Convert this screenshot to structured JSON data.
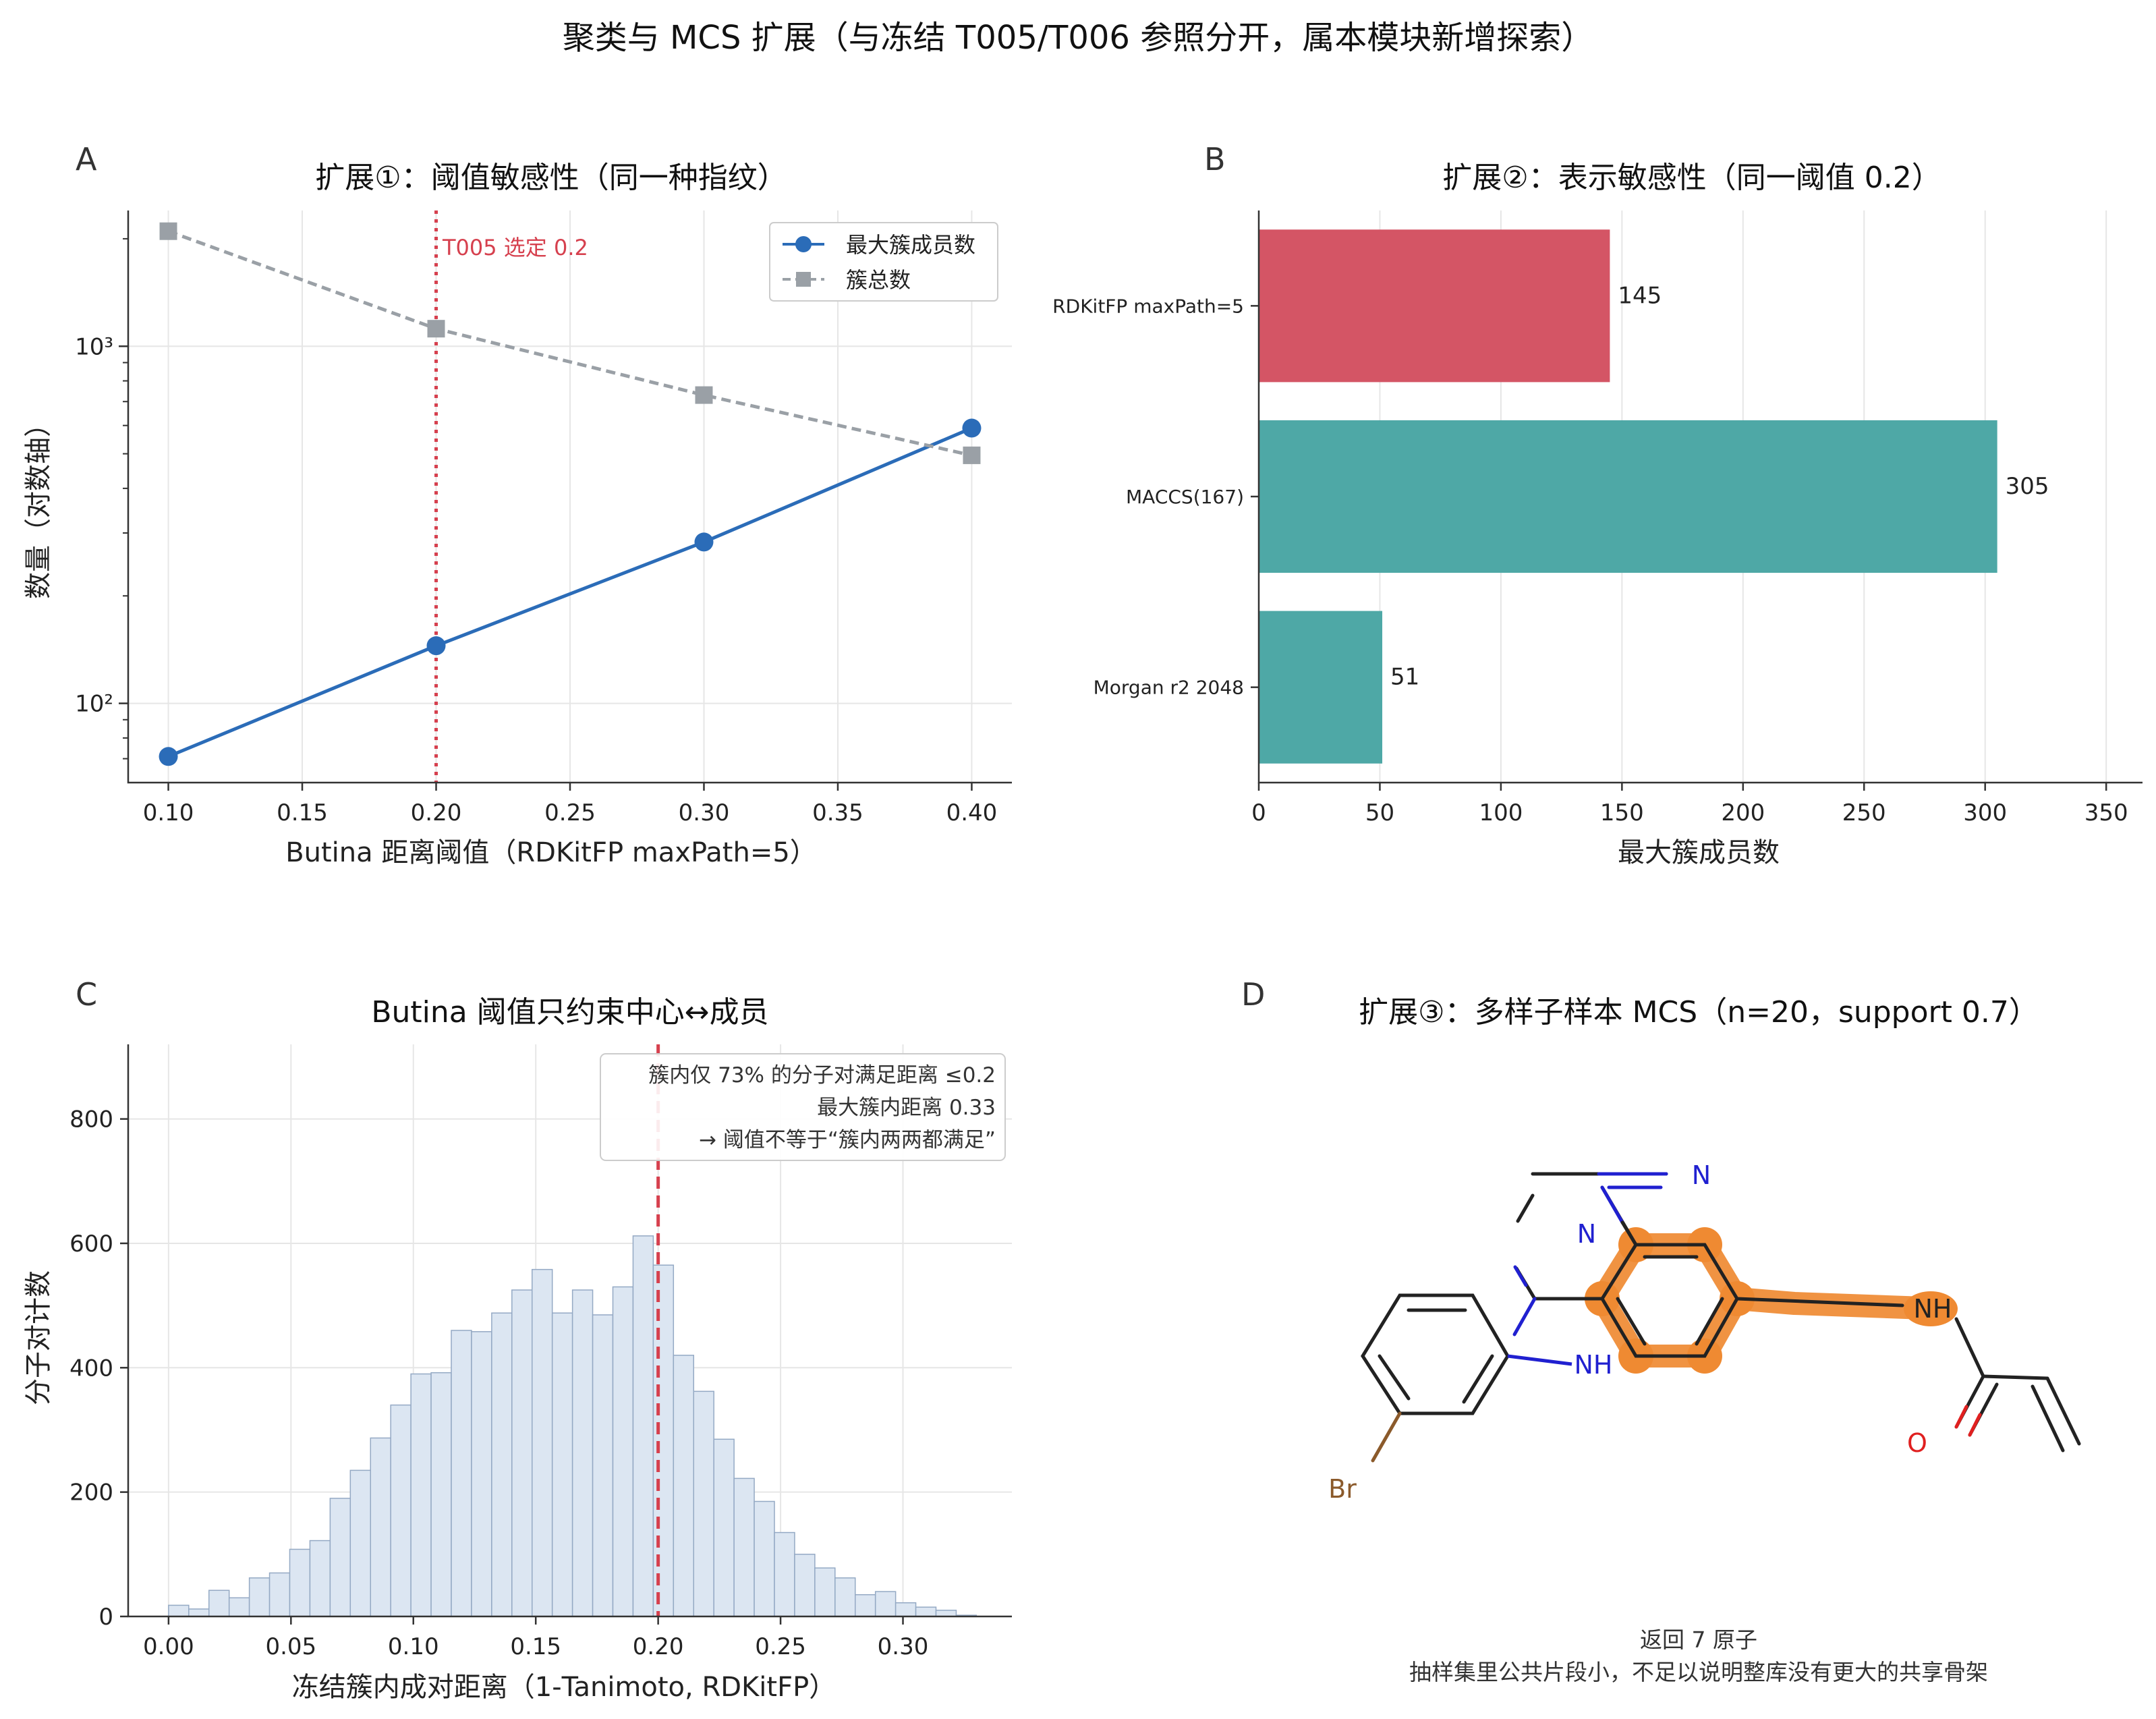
{
  "figure_title": "聚类与 MCS 扩展（与冻结 T005/T006 参照分开，属本模块新增探索）",
  "chart_data": [
    {
      "panel": "A",
      "type": "line",
      "title": "扩展①：阈值敏感性（同一种指纹）",
      "xlabel": "Butina 距离阈值（RDKitFP maxPath=5）",
      "ylabel": "数量（对数轴）",
      "yscale": "log",
      "xlim": [
        0.085,
        0.415
      ],
      "ylim": [
        60,
        2400
      ],
      "xticks": [
        "0.10",
        "0.15",
        "0.20",
        "0.25",
        "0.30",
        "0.35",
        "0.40"
      ],
      "xtick_values": [
        0.1,
        0.15,
        0.2,
        0.25,
        0.3,
        0.35,
        0.4
      ],
      "ytick_labels": [
        "10²",
        "10³"
      ],
      "ytick_values": [
        100,
        1000
      ],
      "x": [
        0.1,
        0.2,
        0.3,
        0.4
      ],
      "series": [
        {
          "name": "最大簇成员数",
          "values": [
            71,
            145,
            283,
            590
          ],
          "color": "#2b6cb8",
          "style": "solid",
          "marker": "circle"
        },
        {
          "name": "簇总数",
          "values": [
            2100,
            1120,
            730,
            495
          ],
          "color": "#9aa0a6",
          "style": "dashed",
          "marker": "square"
        }
      ],
      "vline": {
        "x": 0.2,
        "label": "T005 选定 0.2",
        "color": "#d6404e"
      },
      "grid": true,
      "legend": "top-right"
    },
    {
      "panel": "B",
      "type": "bar",
      "orientation": "horizontal",
      "title": "扩展②：表示敏感性（同一阈值 0.2）",
      "xlabel": "最大簇成员数",
      "categories": [
        "RDKitFP maxPath=5",
        "MACCS(167)",
        "Morgan r2 2048"
      ],
      "values": [
        145,
        305,
        51
      ],
      "value_labels": [
        "145",
        "305",
        "51"
      ],
      "colors": [
        "#d45565",
        "#4ea8a6",
        "#4ea8a6"
      ],
      "xlim": [
        0,
        365
      ],
      "xticks": [
        "0",
        "50",
        "100",
        "150",
        "200",
        "250",
        "300",
        "350"
      ],
      "xtick_values": [
        0,
        50,
        100,
        150,
        200,
        250,
        300,
        350
      ],
      "grid": true
    },
    {
      "panel": "C",
      "type": "bar",
      "subtype": "histogram",
      "title": "Butina 阈值只约束中心↔成员",
      "xlabel": "冻结簇内成对距离（1-Tanimoto, RDKitFP）",
      "ylabel": "分子对计数",
      "xlim": [
        -0.0165,
        0.3445
      ],
      "ylim": [
        0,
        920
      ],
      "xticks": [
        "0.00",
        "0.05",
        "0.10",
        "0.15",
        "0.20",
        "0.25",
        "0.30"
      ],
      "xtick_values": [
        0.0,
        0.05,
        0.1,
        0.15,
        0.2,
        0.25,
        0.3
      ],
      "yticks": [
        "0",
        "200",
        "400",
        "600",
        "800"
      ],
      "ytick_values": [
        0,
        200,
        400,
        600,
        800
      ],
      "bin_width": 0.00825,
      "bin_start": 0.0,
      "values": [
        18,
        12,
        42,
        30,
        62,
        70,
        108,
        122,
        190,
        235,
        287,
        340,
        390,
        392,
        460,
        458,
        488,
        525,
        558,
        488,
        525,
        485,
        530,
        612,
        565,
        420,
        362,
        285,
        222,
        185,
        135,
        100,
        78,
        62,
        35,
        40,
        22,
        15,
        10,
        2
      ],
      "color": "#dce6f2",
      "edge_color": "#94a9c4",
      "vline": {
        "x": 0.2,
        "color": "#d6404e"
      },
      "annotation": [
        "簇内仅 73% 的分子对满足距离 ≤0.2",
        "最大簇内距离 0.33",
        "→ 阈值不等于“簇内两两都满足”"
      ],
      "grid": true
    }
  ],
  "panel_letters": {
    "a": "A",
    "b": "B",
    "c": "C",
    "d": "D"
  },
  "panel_d": {
    "title": "扩展③：多样子样本 MCS（n=20，support 0.7）",
    "atoms": {
      "n1": "N",
      "n2": "N",
      "nh1": "NH",
      "nh2": "NH",
      "o": "O",
      "br": "Br"
    },
    "caption_line1": "返回 7 原子",
    "caption_line2": "抽样集里公共片段小，不足以说明整库没有更大的共享骨架",
    "highlight_color": "#ef8a32"
  }
}
